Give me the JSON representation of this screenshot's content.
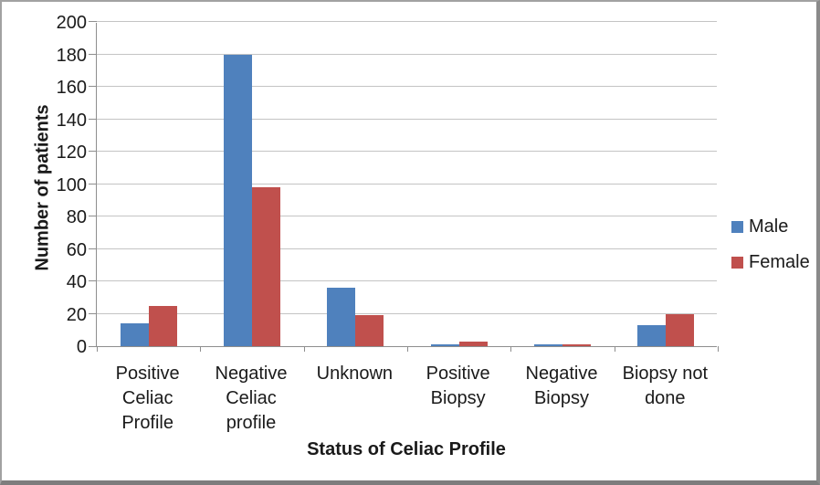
{
  "chart_data": {
    "type": "bar",
    "title": "",
    "xlabel": "Status of Celiac Profile",
    "ylabel": "Number of patients",
    "ylim": [
      0,
      200
    ],
    "ytick_step": 20,
    "yticks": [
      0,
      20,
      40,
      60,
      80,
      100,
      120,
      140,
      160,
      180,
      200
    ],
    "grid": "horizontal-only",
    "legend_position": "right",
    "categories": [
      "Positive\nCeliac\nProfile",
      "Negative\nCeliac\nprofile",
      "Unknown",
      "Positive\nBiopsy",
      "Negative\nBiopsy",
      "Biopsy not\ndone"
    ],
    "series": [
      {
        "name": "Male",
        "color": "#4F81BD",
        "values": [
          14,
          180,
          36,
          1,
          1,
          13
        ]
      },
      {
        "name": "Female",
        "color": "#C0504D",
        "values": [
          25,
          98,
          19,
          3,
          1,
          20
        ]
      }
    ]
  },
  "frame_colors": {
    "gridline": "#c4c4c4",
    "axis": "#8e8e8e",
    "border": "#8a8a8a"
  }
}
